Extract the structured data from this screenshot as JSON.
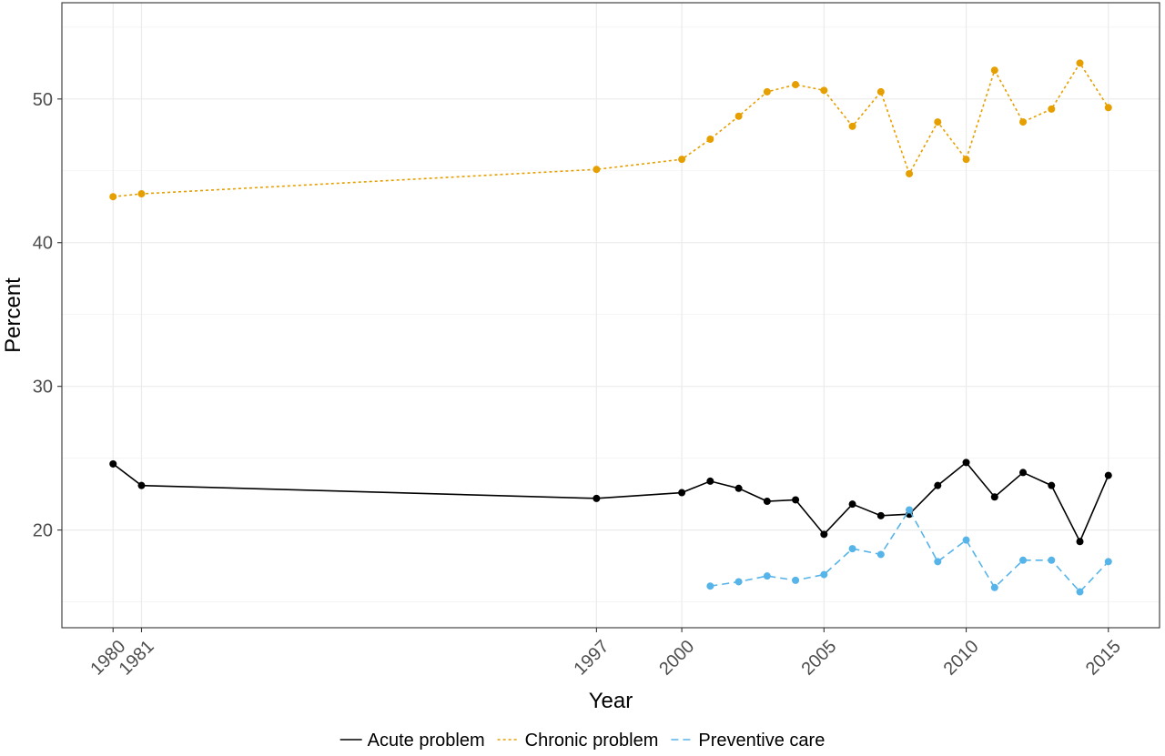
{
  "chart_data": {
    "type": "line",
    "xlabel": "Year",
    "ylabel": "Percent",
    "x_ticks": [
      1980,
      1981,
      1997,
      2000,
      2005,
      2010,
      2015
    ],
    "y_ticks": [
      20,
      30,
      40,
      50
    ],
    "xlim": [
      1978.2,
      2016.8
    ],
    "ylim": [
      13.2,
      56.7
    ],
    "grid": true,
    "legend_position": "bottom",
    "series": [
      {
        "name": "Acute problem",
        "color": "#000000",
        "line_style": "solid",
        "points": [
          [
            1980,
            24.6
          ],
          [
            1981,
            23.1
          ],
          [
            1997,
            22.2
          ],
          [
            2000,
            22.6
          ],
          [
            2001,
            23.4
          ],
          [
            2002,
            22.9
          ],
          [
            2003,
            22.0
          ],
          [
            2004,
            22.1
          ],
          [
            2005,
            19.7
          ],
          [
            2006,
            21.8
          ],
          [
            2007,
            21.0
          ],
          [
            2008,
            21.1
          ],
          [
            2009,
            23.1
          ],
          [
            2010,
            24.7
          ],
          [
            2011,
            22.3
          ],
          [
            2012,
            24.0
          ],
          [
            2013,
            23.1
          ],
          [
            2014,
            19.2
          ],
          [
            2015,
            23.8
          ]
        ]
      },
      {
        "name": "Chronic problem",
        "color": "#E69F00",
        "line_style": "dotted",
        "points": [
          [
            1980,
            43.2
          ],
          [
            1981,
            43.4
          ],
          [
            1997,
            45.1
          ],
          [
            2000,
            45.8
          ],
          [
            2001,
            47.2
          ],
          [
            2002,
            48.8
          ],
          [
            2003,
            50.5
          ],
          [
            2004,
            51.0
          ],
          [
            2005,
            50.6
          ],
          [
            2006,
            48.1
          ],
          [
            2007,
            50.5
          ],
          [
            2008,
            44.8
          ],
          [
            2009,
            48.4
          ],
          [
            2010,
            45.8
          ],
          [
            2011,
            52.0
          ],
          [
            2012,
            48.4
          ],
          [
            2013,
            49.3
          ],
          [
            2014,
            52.5
          ],
          [
            2015,
            49.4
          ]
        ]
      },
      {
        "name": "Preventive care",
        "color": "#56B4E9",
        "line_style": "dashed",
        "points": [
          [
            2001,
            16.1
          ],
          [
            2002,
            16.4
          ],
          [
            2003,
            16.8
          ],
          [
            2004,
            16.5
          ],
          [
            2005,
            16.9
          ],
          [
            2006,
            18.7
          ],
          [
            2007,
            18.3
          ],
          [
            2008,
            21.4
          ],
          [
            2009,
            17.8
          ],
          [
            2010,
            19.3
          ],
          [
            2011,
            16.0
          ],
          [
            2012,
            17.9
          ],
          [
            2013,
            17.9
          ],
          [
            2014,
            15.7
          ],
          [
            2015,
            17.8
          ]
        ]
      }
    ]
  }
}
